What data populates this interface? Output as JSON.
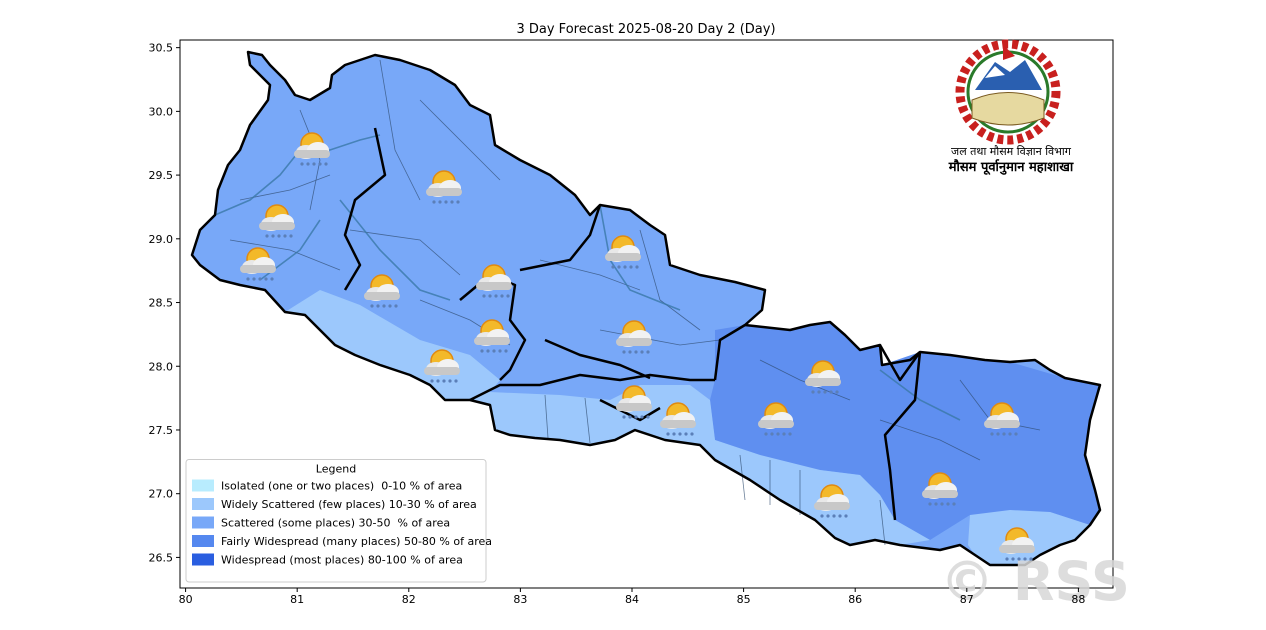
{
  "chart_data": {
    "type": "map",
    "title": "3 Day Forecast 2025-08-20 Day 2 (Day)",
    "xlim": [
      79.95,
      88.31
    ],
    "ylim": [
      26.26,
      30.56
    ],
    "xticks": [
      80,
      81,
      82,
      83,
      84,
      85,
      86,
      87,
      88
    ],
    "yticks": [
      26.5,
      {
        "value": 27,
        "label": "27.0"
      },
      27.5,
      {
        "value": 28,
        "label": "28.0"
      },
      28.5,
      {
        "value": 29,
        "label": "29.0"
      },
      29.5,
      {
        "value": 30,
        "label": "30.0"
      },
      30.5
    ],
    "legend": {
      "title": "Legend",
      "corner": "lower left",
      "entries": [
        {
          "name": "Isolated (one or two places)  0-10 % of area",
          "color": "#b8ecfe"
        },
        {
          "name": "Widely Scattered (few places) 10-30 % of area",
          "color": "#9cc8fc"
        },
        {
          "name": "Scattered (some places) 30-50  % of area",
          "color": "#78a8f8"
        },
        {
          "name": "Fairly Widespread (many places) 50-80 % of area",
          "color": "#5588ef"
        },
        {
          "name": "Widespread (most places) 80-100 % of area",
          "color": "#2a5ee0"
        }
      ]
    }
  },
  "logo": {
    "department": "जल तथा मौसम विज्ञान विभाग",
    "division": "मौसम पूर्वानुमान महाशाखा"
  },
  "watermark": "© RSS"
}
